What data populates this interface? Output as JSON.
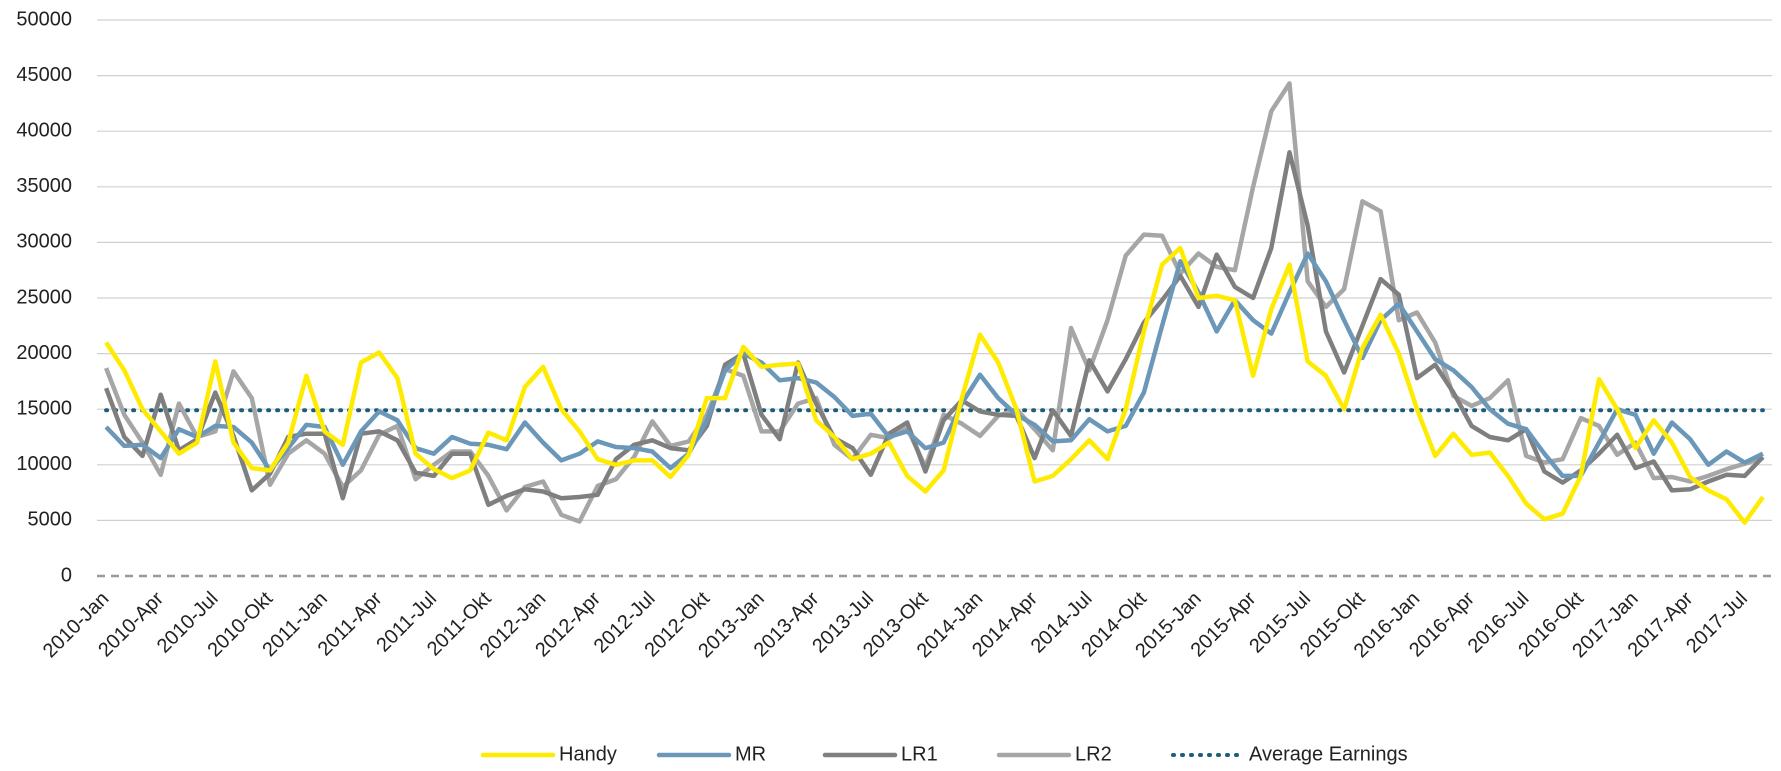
{
  "chart_data": {
    "type": "line",
    "categories": [
      "2010-Jan",
      null,
      null,
      "2010-Apr",
      null,
      null,
      "2010-Jul",
      null,
      null,
      "2010-Okt",
      null,
      null,
      "2011-Jan",
      null,
      null,
      "2011-Apr",
      null,
      null,
      "2011-Jul",
      null,
      null,
      "2011-Okt",
      null,
      null,
      "2012-Jan",
      null,
      null,
      "2012-Apr",
      null,
      null,
      "2012-Jul",
      null,
      null,
      "2012-Okt",
      null,
      null,
      "2013-Jan",
      null,
      null,
      "2013-Apr",
      null,
      null,
      "2013-Jul",
      null,
      null,
      "2013-Okt",
      null,
      null,
      "2014-Jan",
      null,
      null,
      "2014-Apr",
      null,
      null,
      "2014-Jul",
      null,
      null,
      "2014-Okt",
      null,
      null,
      "2015-Jan",
      null,
      null,
      "2015-Apr",
      null,
      null,
      "2015-Jul",
      null,
      null,
      "2015-Okt",
      null,
      null,
      "2016-Jan",
      null,
      null,
      "2016-Apr",
      null,
      null,
      "2016-Jul",
      null,
      null,
      "2016-Okt",
      null,
      null,
      "2017-Jan",
      null,
      null,
      "2017-Apr",
      null,
      null,
      "2017-Jul",
      null
    ],
    "series": [
      {
        "name": "Handy",
        "color": "#ffeb00",
        "values": [
          21000,
          18500,
          15000,
          13000,
          11000,
          12000,
          19300,
          12000,
          9700,
          9500,
          12000,
          18000,
          13000,
          11800,
          19200,
          20100,
          17800,
          11000,
          9600,
          8800,
          9500,
          12900,
          12200,
          17000,
          18800,
          15000,
          13000,
          10500,
          10000,
          10400,
          10400,
          8900,
          10900,
          16000,
          16000,
          20600,
          18800,
          19000,
          19100,
          14000,
          12500,
          10500,
          11000,
          12000,
          9000,
          7600,
          9500,
          16000,
          21700,
          19200,
          15000,
          8500,
          9000,
          10500,
          12200,
          10500,
          15000,
          22000,
          28000,
          29500,
          25000,
          25200,
          24800,
          18000,
          24000,
          28000,
          19300,
          18000,
          15000,
          20500,
          23500,
          20000,
          15000,
          10800,
          12800,
          10900,
          11100,
          9000,
          6500,
          5100,
          5600,
          9000,
          17700,
          15000,
          11500,
          14000,
          12000,
          8900,
          7700,
          6900,
          4800,
          7100
        ]
      },
      {
        "name": "MR",
        "color": "#6b97b8",
        "values": [
          13400,
          11700,
          11800,
          10600,
          13200,
          12500,
          13500,
          13400,
          12000,
          9500,
          11500,
          13600,
          13400,
          10000,
          13000,
          14800,
          14000,
          11500,
          11000,
          12500,
          11900,
          11800,
          11400,
          13800,
          12000,
          10400,
          11000,
          12100,
          11600,
          11500,
          11200,
          9700,
          11000,
          14000,
          18500,
          20000,
          19200,
          17600,
          17800,
          17400,
          16100,
          14400,
          14600,
          12500,
          13000,
          11500,
          12000,
          15500,
          18100,
          16000,
          14500,
          13600,
          12100,
          12200,
          14100,
          13000,
          13500,
          16500,
          22500,
          28300,
          25500,
          22000,
          24800,
          23000,
          21800,
          25500,
          29000,
          26500,
          23000,
          19600,
          23000,
          24500,
          22000,
          19500,
          18500,
          17000,
          15000,
          13700,
          13200,
          11000,
          9000,
          9000,
          12000,
          15000,
          14500,
          11000,
          13800,
          12300,
          10000,
          11200,
          10200,
          11000
        ]
      },
      {
        "name": "LR1",
        "color": "#7f7f7f",
        "values": [
          16900,
          12500,
          10800,
          16300,
          11300,
          12300,
          16500,
          12600,
          7700,
          9200,
          12500,
          12800,
          12800,
          7000,
          12800,
          13000,
          12200,
          9300,
          9000,
          11000,
          11000,
          6400,
          7200,
          7800,
          7600,
          7000,
          7100,
          7300,
          10500,
          11800,
          12200,
          11500,
          11300,
          13500,
          19000,
          20000,
          14500,
          12300,
          19200,
          15500,
          12400,
          11500,
          9100,
          12800,
          13800,
          9400,
          14000,
          15800,
          14800,
          14500,
          14400,
          10600,
          14900,
          12600,
          19400,
          16600,
          19500,
          22800,
          24800,
          27000,
          24200,
          28900,
          26000,
          25000,
          29500,
          38100,
          31500,
          22000,
          18300,
          22500,
          26700,
          25300,
          17800,
          19000,
          16500,
          13500,
          12500,
          12200,
          13200,
          9400,
          8400,
          9500,
          11000,
          12700,
          9700,
          10300,
          7700,
          7800,
          8500,
          9100,
          9000,
          10700
        ]
      },
      {
        "name": "LR2",
        "color": "#a6a6a6",
        "values": [
          18700,
          14500,
          12000,
          9100,
          15500,
          12500,
          13000,
          18400,
          16000,
          8200,
          11000,
          12200,
          11000,
          8000,
          9500,
          12700,
          13500,
          8700,
          10000,
          11200,
          11200,
          9000,
          5900,
          8000,
          8500,
          5500,
          4900,
          8100,
          8700,
          10700,
          13900,
          11700,
          12100,
          14500,
          18600,
          18000,
          13000,
          13000,
          15500,
          16000,
          11800,
          10500,
          12700,
          12400,
          13300,
          9800,
          14500,
          13700,
          12600,
          14400,
          15000,
          13200,
          11300,
          22300,
          18500,
          23000,
          28800,
          30700,
          30600,
          27200,
          29000,
          27800,
          27500,
          35000,
          41800,
          44300,
          26500,
          24200,
          25800,
          33700,
          32800,
          23000,
          23700,
          21000,
          16200,
          15300,
          16000,
          17600,
          10800,
          10200,
          10500,
          14200,
          13500,
          10900,
          12000,
          8800,
          8900,
          8500,
          9000,
          9600,
          10100,
          10600
        ]
      }
    ],
    "average": {
      "name": "Average Earnings",
      "color": "#1b5e7a",
      "value": 14900
    },
    "ylim": [
      0,
      50000
    ],
    "yticks": [
      0,
      5000,
      10000,
      15000,
      20000,
      25000,
      30000,
      35000,
      40000,
      45000,
      50000
    ],
    "grid": true,
    "legend": "bottom"
  }
}
